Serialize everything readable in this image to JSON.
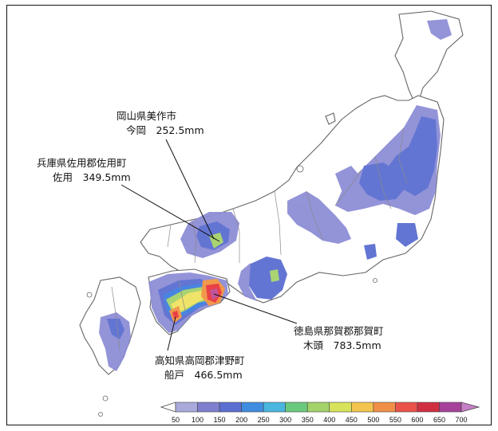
{
  "annotations": [
    {
      "id": "okayama",
      "line1": "岡山県美作市",
      "line2": "今岡　252.5mm"
    },
    {
      "id": "hyogo",
      "line1": "兵庫県佐用郡佐用町",
      "line2": "佐用　349.5mm"
    },
    {
      "id": "tokushima",
      "line1": "徳島県那賀郡那賀町",
      "line2": "木頭　783.5mm"
    },
    {
      "id": "kochi",
      "line1": "高知県高岡郡津野町",
      "line2": "船戸　466.5mm"
    }
  ],
  "legend": {
    "ticks": [
      "50",
      "100",
      "150",
      "200",
      "250",
      "300",
      "350",
      "400",
      "450",
      "500",
      "550",
      "600",
      "650",
      "700"
    ],
    "colors": [
      "#ffffff",
      "#a9a9dc",
      "#7f7fcf",
      "#5a6fd0",
      "#3f8de0",
      "#49b6df",
      "#6bc97d",
      "#a3d36a",
      "#d7e35b",
      "#f3c54e",
      "#f08f47",
      "#e95349",
      "#cf2f41",
      "#a6429b",
      "#c77fc8"
    ]
  },
  "colors": {
    "light": "#8e8ed6",
    "mid": "#5b6ed1",
    "blue": "#3f7fe0",
    "green": "#a6d26b",
    "yellow": "#f0e262",
    "orange": "#f19343",
    "red": "#e8373d",
    "magenta": "#c04d96",
    "border": "#7a7a7a"
  }
}
